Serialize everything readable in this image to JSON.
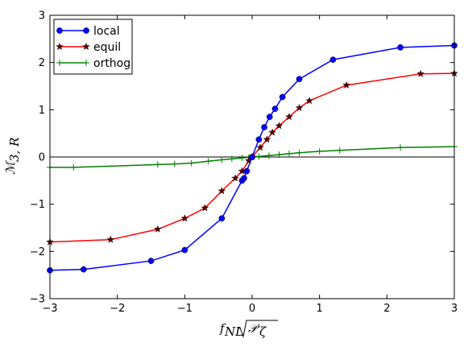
{
  "chart_data": {
    "type": "line",
    "title": "",
    "xlabel": "f_NL √P_ζ",
    "ylabel": "M_3,R",
    "xlim": [
      -3,
      3
    ],
    "ylim": [
      -3,
      3
    ],
    "x_ticks": [
      -3,
      -2,
      -1,
      0,
      1,
      2,
      3
    ],
    "y_ticks": [
      -3,
      -2,
      -1,
      0,
      1,
      2,
      3
    ],
    "x_tick_labels": [
      "−3",
      "−2",
      "−1",
      "0",
      "1",
      "2",
      "3"
    ],
    "y_tick_labels": [
      "−3",
      "−2",
      "−1",
      "0",
      "1",
      "2",
      "3"
    ],
    "grid": false,
    "legend_position": "top-left",
    "zero_line": true,
    "series": [
      {
        "name": "local",
        "color": "#0000ff",
        "marker": "circle",
        "points": [
          [
            -3.0,
            -2.4
          ],
          [
            -2.5,
            -2.38
          ],
          [
            -1.5,
            -2.2
          ],
          [
            -1.0,
            -1.97
          ],
          [
            -0.45,
            -1.3
          ],
          [
            -0.15,
            -0.5
          ],
          [
            -0.12,
            -0.45
          ],
          [
            -0.08,
            -0.3
          ],
          [
            0.0,
            0.0
          ],
          [
            0.1,
            0.37
          ],
          [
            0.18,
            0.63
          ],
          [
            0.26,
            0.85
          ],
          [
            0.34,
            1.02
          ],
          [
            0.45,
            1.27
          ],
          [
            0.7,
            1.65
          ],
          [
            1.2,
            2.06
          ],
          [
            2.2,
            2.32
          ],
          [
            3.0,
            2.36
          ]
        ]
      },
      {
        "name": "equil",
        "color": "#ff0000",
        "marker": "star",
        "points": [
          [
            -3.0,
            -1.8
          ],
          [
            -2.1,
            -1.75
          ],
          [
            -1.4,
            -1.53
          ],
          [
            -1.0,
            -1.3
          ],
          [
            -0.7,
            -1.08
          ],
          [
            -0.45,
            -0.72
          ],
          [
            -0.25,
            -0.45
          ],
          [
            -0.15,
            -0.3
          ],
          [
            -0.05,
            -0.08
          ],
          [
            0.0,
            0.0
          ],
          [
            0.12,
            0.2
          ],
          [
            0.22,
            0.37
          ],
          [
            0.3,
            0.52
          ],
          [
            0.4,
            0.66
          ],
          [
            0.55,
            0.85
          ],
          [
            0.7,
            1.04
          ],
          [
            0.85,
            1.19
          ],
          [
            1.4,
            1.52
          ],
          [
            2.5,
            1.76
          ],
          [
            3.0,
            1.77
          ]
        ]
      },
      {
        "name": "orthog",
        "color": "#008000",
        "marker": "plus",
        "points": [
          [
            -3.0,
            -0.22
          ],
          [
            -2.65,
            -0.22
          ],
          [
            -1.4,
            -0.16
          ],
          [
            -1.15,
            -0.15
          ],
          [
            -0.9,
            -0.13
          ],
          [
            -0.65,
            -0.09
          ],
          [
            -0.45,
            -0.06
          ],
          [
            -0.3,
            -0.04
          ],
          [
            -0.15,
            -0.02
          ],
          [
            -0.05,
            -0.01
          ],
          [
            0.0,
            0.0
          ],
          [
            0.1,
            0.01
          ],
          [
            0.25,
            0.03
          ],
          [
            0.4,
            0.05
          ],
          [
            0.55,
            0.07
          ],
          [
            0.7,
            0.09
          ],
          [
            1.0,
            0.12
          ],
          [
            1.3,
            0.14
          ],
          [
            2.2,
            0.2
          ],
          [
            3.0,
            0.22
          ]
        ]
      }
    ]
  }
}
